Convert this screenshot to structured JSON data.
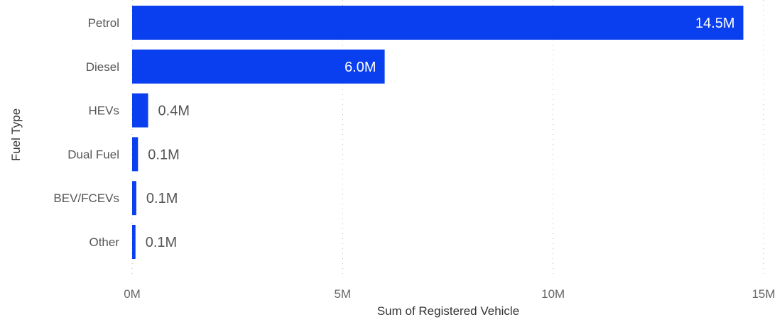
{
  "chart_data": {
    "type": "bar",
    "orientation": "horizontal",
    "categories": [
      "Petrol",
      "Diesel",
      "HEVs",
      "Dual Fuel",
      "BEV/FCEVs",
      "Other"
    ],
    "values": [
      14520000,
      6000000,
      380000,
      140000,
      100000,
      80000
    ],
    "data_labels": [
      "14.5M",
      "6.0M",
      "0.4M",
      "0.1M",
      "0.1M",
      "0.1M"
    ],
    "xlabel": "Sum of Registered Vehicle",
    "ylabel": "Fuel Type",
    "xlim": [
      0,
      15000000
    ],
    "x_ticks": [
      {
        "value": 0,
        "label": "0M"
      },
      {
        "value": 5000000,
        "label": "5M"
      },
      {
        "value": 10000000,
        "label": "10M"
      },
      {
        "value": 15000000,
        "label": "15M"
      }
    ],
    "grid": "vertical-dotted",
    "legend": "none",
    "bar_color": "#0a3ff0",
    "label_inside_color": "#ffffff",
    "label_outside_color": "#555555"
  }
}
